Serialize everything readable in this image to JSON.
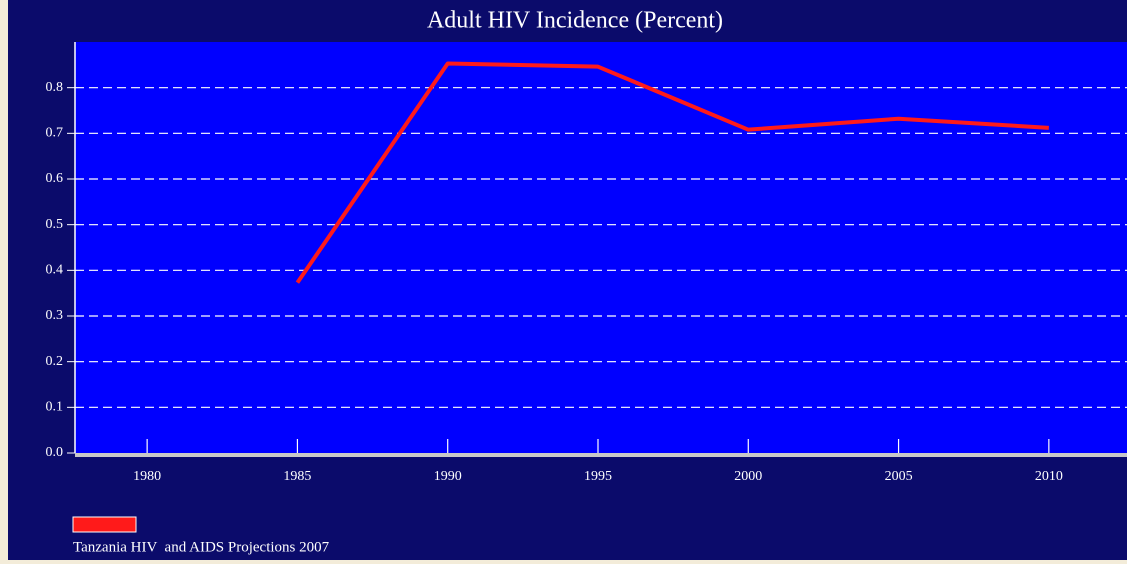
{
  "chart_data": {
    "type": "line",
    "title": "Adult HIV Incidence (Percent)",
    "x": [
      1985,
      1990,
      1995,
      2000,
      2005,
      2010
    ],
    "series": [
      {
        "name": "Tanzania HIV  and AIDS Projections 2007",
        "color": "#ff1a1a",
        "values": [
          0.373,
          0.853,
          0.846,
          0.708,
          0.732,
          0.712
        ]
      }
    ],
    "xlim": [
      1977.6,
      2012.6
    ],
    "xticks": [
      1980,
      1985,
      1990,
      1995,
      2000,
      2005,
      2010
    ],
    "ylim": [
      0,
      0.9
    ],
    "yticks": [
      {
        "value": 0,
        "label": "0.0"
      },
      0.1,
      0.2,
      0.3,
      0.4,
      0.5,
      0.6,
      0.7,
      0.8
    ],
    "grid": true
  }
}
